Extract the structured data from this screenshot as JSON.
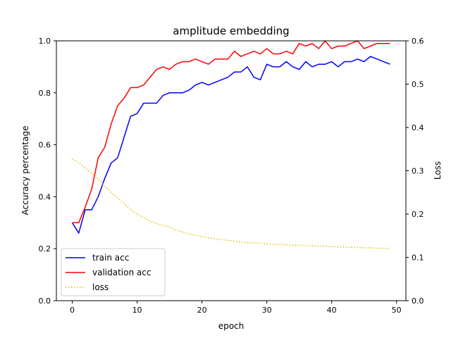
{
  "chart_data": {
    "type": "line",
    "title": "amplitude embedding",
    "xlabel": "epoch",
    "ylabel": "Accuracy percentage",
    "y2label": "Loss",
    "xlim": [
      -2.45,
      51.45
    ],
    "ylim": [
      0.0,
      1.0
    ],
    "y2lim": [
      0.0,
      0.6
    ],
    "xticks": [
      0,
      10,
      20,
      30,
      40,
      50
    ],
    "yticks": [
      0.0,
      0.2,
      0.4,
      0.6,
      0.8,
      1.0
    ],
    "y2ticks": [
      0.0,
      0.1,
      0.2,
      0.3,
      0.4,
      0.5,
      0.6
    ],
    "xtick_labels": [
      "0",
      "10",
      "20",
      "30",
      "40",
      "50"
    ],
    "ytick_labels": [
      "0.0",
      "0.2",
      "0.4",
      "0.6",
      "0.8",
      "1.0"
    ],
    "y2tick_labels": [
      "0.0",
      "0.1",
      "0.2",
      "0.3",
      "0.4",
      "0.5",
      "0.6"
    ],
    "grid": false,
    "legend_position": "lower-left",
    "x": [
      0,
      1,
      2,
      3,
      4,
      5,
      6,
      7,
      8,
      9,
      10,
      11,
      12,
      13,
      14,
      15,
      16,
      17,
      18,
      19,
      20,
      21,
      22,
      23,
      24,
      25,
      26,
      27,
      28,
      29,
      30,
      31,
      32,
      33,
      34,
      35,
      36,
      37,
      38,
      39,
      40,
      41,
      42,
      43,
      44,
      45,
      46,
      47,
      48,
      49
    ],
    "series": [
      {
        "name": "train acc",
        "axis": "left",
        "color": "#0000ff",
        "style": "solid",
        "values": [
          0.3,
          0.26,
          0.35,
          0.35,
          0.4,
          0.47,
          0.53,
          0.55,
          0.63,
          0.71,
          0.72,
          0.76,
          0.76,
          0.76,
          0.79,
          0.8,
          0.8,
          0.8,
          0.81,
          0.83,
          0.84,
          0.83,
          0.84,
          0.85,
          0.86,
          0.88,
          0.88,
          0.9,
          0.86,
          0.85,
          0.91,
          0.9,
          0.9,
          0.92,
          0.9,
          0.89,
          0.92,
          0.9,
          0.91,
          0.91,
          0.92,
          0.9,
          0.92,
          0.92,
          0.93,
          0.92,
          0.94,
          0.93,
          0.92,
          0.91
        ]
      },
      {
        "name": "validation acc",
        "axis": "left",
        "color": "#ff0000",
        "style": "solid",
        "values": [
          0.3,
          0.3,
          0.36,
          0.43,
          0.55,
          0.59,
          0.68,
          0.75,
          0.78,
          0.82,
          0.82,
          0.83,
          0.86,
          0.89,
          0.9,
          0.89,
          0.91,
          0.92,
          0.92,
          0.93,
          0.92,
          0.91,
          0.93,
          0.93,
          0.93,
          0.96,
          0.94,
          0.95,
          0.96,
          0.95,
          0.97,
          0.95,
          0.95,
          0.96,
          0.95,
          0.99,
          0.98,
          0.99,
          0.97,
          1.0,
          0.97,
          0.98,
          0.98,
          0.99,
          1.0,
          0.97,
          0.98,
          0.99,
          0.99,
          0.99
        ]
      },
      {
        "name": "loss",
        "axis": "right",
        "color": "#e0c000",
        "style": "dotted",
        "values": [
          0.327,
          0.319,
          0.306,
          0.294,
          0.282,
          0.265,
          0.25,
          0.237,
          0.224,
          0.21,
          0.2,
          0.192,
          0.184,
          0.178,
          0.174,
          0.17,
          0.163,
          0.159,
          0.154,
          0.151,
          0.148,
          0.145,
          0.143,
          0.141,
          0.139,
          0.138,
          0.135,
          0.134,
          0.134,
          0.133,
          0.131,
          0.13,
          0.13,
          0.129,
          0.128,
          0.128,
          0.127,
          0.127,
          0.126,
          0.126,
          0.125,
          0.124,
          0.124,
          0.123,
          0.123,
          0.122,
          0.122,
          0.121,
          0.121,
          0.121
        ]
      }
    ]
  }
}
